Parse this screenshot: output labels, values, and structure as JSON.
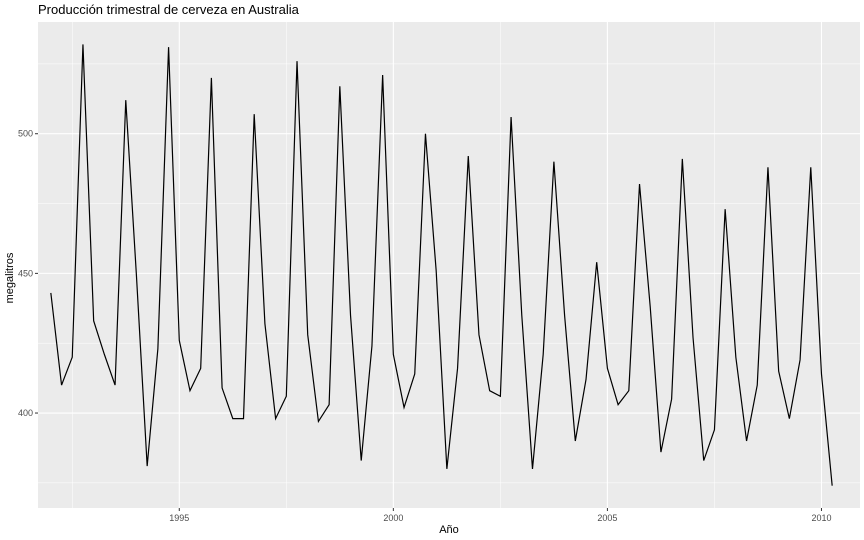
{
  "chart_data": {
    "type": "line",
    "title": "Producción trimestral de cerveza en Australia",
    "xlabel": "Año",
    "ylabel": "megalitros",
    "xlim": [
      1991.7,
      2010.9
    ],
    "ylim": [
      366,
      540
    ],
    "x_ticks": [
      1995,
      2000,
      2005,
      2010
    ],
    "y_ticks": [
      400,
      450,
      500
    ],
    "x_tick_labels": [
      "1995",
      "2000",
      "2005",
      "2010"
    ],
    "y_tick_labels": [
      "400",
      "450",
      "500"
    ],
    "grid": true,
    "background": "#ebebeb",
    "line_color": "#000000",
    "series": [
      {
        "x": [
          "1992 Q1",
          "1992 Q2",
          "1992 Q3",
          "1992 Q4",
          "1993 Q1",
          "1993 Q2",
          "1993 Q3",
          "1993 Q4",
          "1994 Q1",
          "1994 Q2",
          "1994 Q3",
          "1994 Q4",
          "1995 Q1",
          "1995 Q2",
          "1995 Q3",
          "1995 Q4",
          "1996 Q1",
          "1996 Q2",
          "1996 Q3",
          "1996 Q4",
          "1997 Q1",
          "1997 Q2",
          "1997 Q3",
          "1997 Q4",
          "1998 Q1",
          "1998 Q2",
          "1998 Q3",
          "1998 Q4",
          "1999 Q1",
          "1999 Q2",
          "1999 Q3",
          "1999 Q4",
          "2000 Q1",
          "2000 Q2",
          "2000 Q3",
          "2000 Q4",
          "2001 Q1",
          "2001 Q2",
          "2001 Q3",
          "2001 Q4",
          "2002 Q1",
          "2002 Q2",
          "2002 Q3",
          "2002 Q4",
          "2003 Q1",
          "2003 Q2",
          "2003 Q3",
          "2003 Q4",
          "2004 Q1",
          "2004 Q2",
          "2004 Q3",
          "2004 Q4",
          "2005 Q1",
          "2005 Q2",
          "2005 Q3",
          "2005 Q4",
          "2006 Q1",
          "2006 Q2",
          "2006 Q3",
          "2006 Q4",
          "2007 Q1",
          "2007 Q2",
          "2007 Q3",
          "2007 Q4",
          "2008 Q1",
          "2008 Q2",
          "2008 Q3",
          "2008 Q4",
          "2009 Q1",
          "2009 Q2",
          "2009 Q3",
          "2009 Q4",
          "2010 Q1",
          "2010 Q2"
        ],
        "values": [
          443,
          410,
          420,
          532,
          433,
          421,
          410,
          512,
          449,
          381,
          423,
          531,
          426,
          408,
          416,
          520,
          409,
          398,
          398,
          507,
          432,
          398,
          406,
          526,
          428,
          397,
          403,
          517,
          435,
          383,
          424,
          521,
          421,
          402,
          414,
          500,
          451,
          380,
          416,
          492,
          428,
          408,
          406,
          506,
          435,
          380,
          421,
          490,
          435,
          390,
          412,
          454,
          416,
          403,
          408,
          482,
          438,
          386,
          405,
          491,
          427,
          383,
          394,
          473,
          420,
          390,
          410,
          488,
          415,
          398,
          419,
          488,
          414,
          374
        ]
      }
    ]
  }
}
